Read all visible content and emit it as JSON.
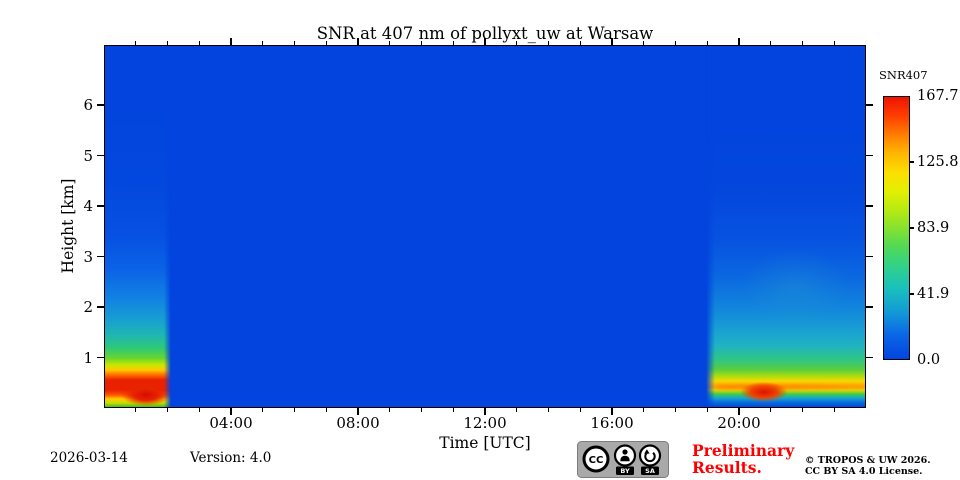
{
  "title": "SNR at 407 nm of pollyxt_uw at Warsaw",
  "axes": {
    "x_label": "Time [UTC]",
    "y_label": "Height [km]",
    "x_ticks": [
      "04:00",
      "08:00",
      "12:00",
      "16:00",
      "20:00"
    ],
    "y_ticks": [
      "1",
      "2",
      "3",
      "4",
      "5",
      "6"
    ]
  },
  "colorbar": {
    "title": "SNR407",
    "tick_labels": [
      "167.7",
      "125.8",
      "83.9",
      "41.9",
      "0.0"
    ]
  },
  "footer": {
    "date": "2026-03-14",
    "version": "Version: 4.0",
    "preliminary": "Preliminary\nResults.",
    "copyright": "© TROPOS & UW 2026.\nCC BY SA 4.0 License.",
    "cc_badge": {
      "cc": "CC",
      "by": "BY",
      "sa": "SA"
    }
  },
  "colors": {
    "background_blue": "#0244dd",
    "preliminary_red": "#ff0000",
    "badge_gray": "#a9a9a9"
  },
  "chart_data": {
    "type": "heatmap",
    "title": "SNR at 407 nm of pollyxt_uw at Warsaw",
    "xlabel": "Time [UTC]",
    "ylabel": "Height [km]",
    "xlim": [
      "00:00",
      "24:00"
    ],
    "ylim": [
      0,
      7.2
    ],
    "xticks": [
      "04:00",
      "08:00",
      "12:00",
      "16:00",
      "20:00"
    ],
    "xtick_minor_interval_hours": 1,
    "yticks": [
      1,
      2,
      3,
      4,
      5,
      6
    ],
    "colormap": "jet",
    "grid": false,
    "colorbar": {
      "label": "SNR407",
      "min": 0.0,
      "max": 167.7,
      "ticks": [
        0.0,
        41.9,
        83.9,
        125.8,
        167.7
      ]
    },
    "regions": [
      {
        "time_utc": "00:00-02:05",
        "description": "Nighttime signal column: SNR maximum ~168 (red) in band 0.2-0.5 km with strongest blob ~00:55-01:50; yellow/green 0.5-0.9 km; cyan to ~2.5 km; weak lighter blue above up to 7 km."
      },
      {
        "time_utc": "02:05-18:55",
        "description": "Uniform background, SNR ~0 (solid blue, daytime / no measurable signal)."
      },
      {
        "time_utc": "18:55-24:00",
        "description": "Nighttime signal column: orange-yellow band 0.3-0.5 km with red maximum ~20:05-20:50; green to ~1 km; cyan fading to blue by ~3.5-4 km; thin blue strip below 0.15 km."
      }
    ]
  }
}
